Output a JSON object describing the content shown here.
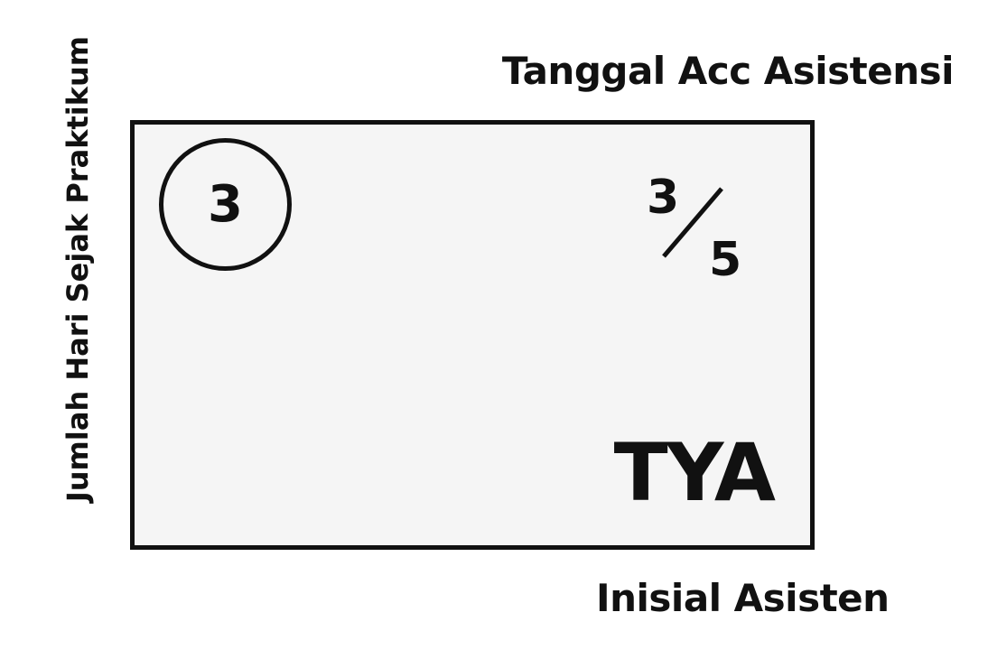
{
  "labels": {
    "top_right": "Tanggal Acc Asistensi",
    "left_vertical": "Jumlah Hari Sejak Praktikum",
    "bottom_right": "Inisial Asisten"
  },
  "card": {
    "circle_number": "3",
    "fraction_numerator": "3",
    "fraction_denominator": "5",
    "initials": "TYA"
  }
}
